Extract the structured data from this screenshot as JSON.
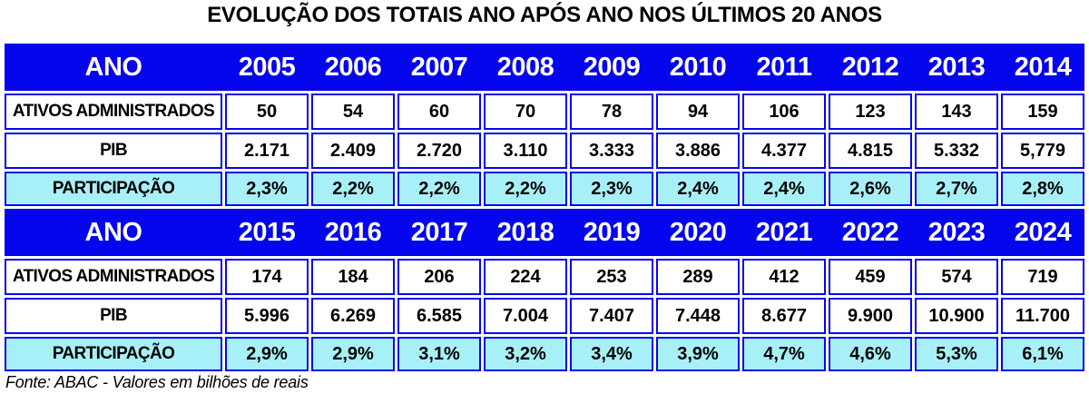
{
  "title": "EVOLUÇÃO DOS TOTAIS ANO APÓS ANO NOS ÚLTIMOS 20 ANOS",
  "footer": "Fonte: ABAC - Valores em bilhões de reais",
  "colors": {
    "header_blue": "#0505EE",
    "border_blue": "#0505EE",
    "participacao_cyan": "#A8F0F8",
    "header_text": "#FFFFFF",
    "body_text": "#000000",
    "background": "#FFFFFF"
  },
  "t1": {
    "header": {
      "label": "ANO",
      "years": [
        "2005",
        "2006",
        "2007",
        "2008",
        "2009",
        "2010",
        "2011",
        "2012",
        "2013",
        "2014"
      ]
    },
    "rows": [
      {
        "label": "ATIVOS ADMINISTRADOS",
        "values": [
          "50",
          "54",
          "60",
          "70",
          "78",
          "94",
          "106",
          "123",
          "143",
          "159"
        ]
      },
      {
        "label": "PIB",
        "values": [
          "2.171",
          "2.409",
          "2.720",
          "3.110",
          "3.333",
          "3.886",
          "4.377",
          "4.815",
          "5.332",
          "5,779"
        ]
      },
      {
        "label": "PARTICIPAÇÃO",
        "values": [
          "2,3%",
          "2,2%",
          "2,2%",
          "2,2%",
          "2,3%",
          "2,4%",
          "2,4%",
          "2,6%",
          "2,7%",
          "2,8%"
        ]
      }
    ]
  },
  "t2": {
    "header": {
      "label": "ANO",
      "years": [
        "2015",
        "2016",
        "2017",
        "2018",
        "2019",
        "2020",
        "2021",
        "2022",
        "2023",
        "2024"
      ]
    },
    "rows": [
      {
        "label": "ATIVOS ADMINISTRADOS",
        "values": [
          "174",
          "184",
          "206",
          "224",
          "253",
          "289",
          "412",
          "459",
          "574",
          "719"
        ]
      },
      {
        "label": "PIB",
        "values": [
          "5.996",
          "6.269",
          "6.585",
          "7.004",
          "7.407",
          "7.448",
          "8.677",
          "9.900",
          "10.900",
          "11.700"
        ]
      },
      {
        "label": "PARTICIPAÇÃO",
        "values": [
          "2,9%",
          "2,9%",
          "3,1%",
          "3,2%",
          "3,4%",
          "3,9%",
          "4,7%",
          "4,6%",
          "5,3%",
          "6,1%"
        ]
      }
    ]
  },
  "chart_data": {
    "type": "table",
    "title": "EVOLUÇÃO DOS TOTAIS ANO APÓS ANO NOS ÚLTIMOS 20 ANOS",
    "categories": [
      "2005",
      "2006",
      "2007",
      "2008",
      "2009",
      "2010",
      "2011",
      "2012",
      "2013",
      "2014",
      "2015",
      "2016",
      "2017",
      "2018",
      "2019",
      "2020",
      "2021",
      "2022",
      "2023",
      "2024"
    ],
    "series": [
      {
        "name": "ATIVOS ADMINISTRADOS",
        "unit": "bilhões de reais",
        "values": [
          50,
          54,
          60,
          70,
          78,
          94,
          106,
          123,
          143,
          159,
          174,
          184,
          206,
          224,
          253,
          289,
          412,
          459,
          574,
          719
        ]
      },
      {
        "name": "PIB",
        "unit": "bilhões de reais",
        "values": [
          2171,
          2409,
          2720,
          3110,
          3333,
          3886,
          4377,
          4815,
          5332,
          5779,
          5996,
          6269,
          6585,
          7004,
          7407,
          7448,
          8677,
          9900,
          10900,
          11700
        ]
      },
      {
        "name": "PARTICIPAÇÃO",
        "unit": "%",
        "values": [
          2.3,
          2.2,
          2.2,
          2.2,
          2.3,
          2.4,
          2.4,
          2.6,
          2.7,
          2.8,
          2.9,
          2.9,
          3.1,
          3.2,
          3.4,
          3.9,
          4.7,
          4.6,
          5.3,
          6.1
        ]
      }
    ],
    "source": "ABAC",
    "layout": "two stacked decade blocks (2005-2014, 2015-2024), header row blue, PARTICIPAÇÃO row cyan"
  }
}
